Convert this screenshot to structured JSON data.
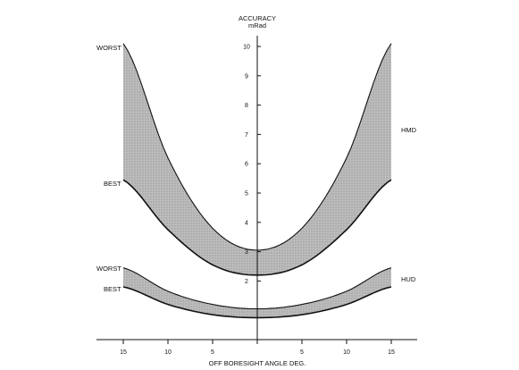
{
  "chart_data": {
    "type": "area",
    "title": "",
    "ylabel": "ACCURACY",
    "ylabel_unit": "mRad",
    "xlabel": "OFF BORESIGHT ANGLE DEG.",
    "x_ticks": [
      "15",
      "10",
      "5",
      "",
      "5",
      "10",
      "15"
    ],
    "x_tick_values": [
      -15,
      -10,
      -5,
      0,
      5,
      10,
      15
    ],
    "y_ticks": [
      "2",
      "3",
      "4",
      "5",
      "6",
      "7",
      "8",
      "9",
      "10"
    ],
    "y_tick_values": [
      2,
      3,
      4,
      5,
      6,
      7,
      8,
      9,
      10
    ],
    "xlim": [
      -15,
      15
    ],
    "ylim": [
      0,
      10
    ],
    "grid": false,
    "series": [
      {
        "name": "HMD",
        "worst_label": "WORST",
        "best_label": "BEST",
        "fill": "#c8c8c8",
        "worst": {
          "x": [
            -15,
            -10,
            -5,
            0,
            5,
            10,
            15
          ],
          "y": [
            10.1,
            6.2,
            3.8,
            3.05,
            3.8,
            6.2,
            10.1
          ]
        },
        "best": {
          "x": [
            -15,
            -10,
            -5,
            0,
            5,
            10,
            15
          ],
          "y": [
            5.45,
            3.75,
            2.55,
            2.2,
            2.55,
            3.75,
            5.45
          ]
        }
      },
      {
        "name": "HUD",
        "worst_label": "WORST",
        "best_label": "BEST",
        "fill": "#c8c8c8",
        "worst": {
          "x": [
            -15,
            -10,
            -5,
            0,
            5,
            10,
            15
          ],
          "y": [
            2.45,
            1.65,
            1.2,
            1.05,
            1.2,
            1.65,
            2.45
          ]
        },
        "best": {
          "x": [
            -15,
            -10,
            -5,
            0,
            5,
            10,
            15
          ],
          "y": [
            1.8,
            1.2,
            0.85,
            0.75,
            0.85,
            1.2,
            1.8
          ]
        }
      }
    ]
  }
}
